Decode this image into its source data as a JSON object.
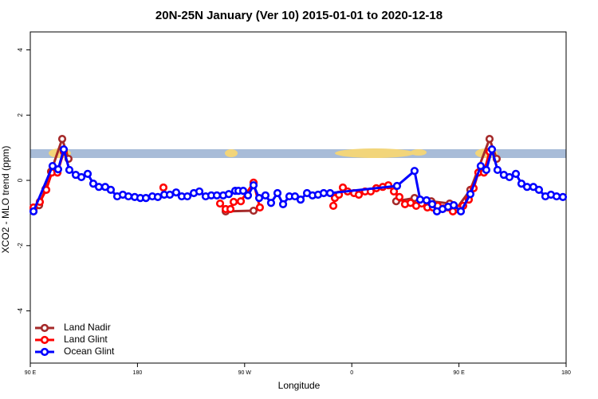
{
  "chart_data": {
    "type": "line",
    "title": "20N-25N January (Ver 10)   2015-01-01 to 2020-12-18",
    "xlabel": "Longitude",
    "ylabel": "XCO2 - MLO trend (ppm)",
    "xlim": [
      90,
      540
    ],
    "ylim": [
      -5.6,
      4.55
    ],
    "xticks": [
      {
        "value": 90,
        "label": "90 E"
      },
      180,
      {
        "value": 270,
        "label": "90 W"
      },
      {
        "value": 360,
        "label": "0"
      },
      {
        "value": 450,
        "label": "90 E"
      },
      {
        "value": 540,
        "label": "180"
      }
    ],
    "yticks": [
      -4,
      -2,
      0,
      2,
      4
    ],
    "legend": "bottom-left",
    "series": [
      {
        "name": "Land Nadir",
        "color": "#a52a2a",
        "x": [
          92.7,
          97.4,
          102.7,
          107.4,
          116.8,
          122.1,
          null,
          254.1,
          277.5,
          null,
          397.3,
          412.7,
          426.8,
          442.2,
          447.6,
          459.6,
          475.7,
          481.7
        ],
        "values": [
          -0.88,
          -0.76,
          -0.27,
          0.27,
          1.27,
          0.66,
          null,
          -0.95,
          -0.93,
          null,
          -0.64,
          -0.54,
          -0.64,
          -0.71,
          -0.88,
          -0.29,
          1.27,
          0.66
        ]
      },
      {
        "name": "Land Glint",
        "color": "#ff0000",
        "x": [
          92.7,
          98.0,
          103.4,
          108.1,
          112.8,
          118.1,
          null,
          201.8,
          null,
          249.4,
          254.1,
          258.1,
          260.8,
          266.8,
          277.5,
          282.8,
          null,
          344.5,
          345.8,
          349.2,
          352.5,
          356.5,
          361.9,
          365.9,
          371.2,
          375.9,
          380.6,
          386.0,
          390.7,
          395.4,
          400.0,
          404.7,
          409.4,
          414.1,
          418.8,
          423.5,
          428.1,
          432.2,
          436.9,
          440.9,
          444.9,
          449.6,
          453.6,
          458.3,
          462.3,
          466.3,
          471.0,
          475.7
        ],
        "values": [
          -0.83,
          -0.66,
          -0.29,
          0.24,
          0.24,
          0.88,
          null,
          -0.22,
          null,
          -0.71,
          -0.88,
          -0.88,
          -0.66,
          -0.64,
          -0.07,
          -0.83,
          null,
          -0.78,
          -0.54,
          -0.44,
          -0.22,
          -0.34,
          -0.39,
          -0.44,
          -0.34,
          -0.34,
          -0.24,
          -0.2,
          -0.15,
          -0.34,
          -0.51,
          -0.73,
          -0.69,
          -0.78,
          -0.71,
          -0.83,
          -0.83,
          -0.78,
          -0.86,
          -0.83,
          -0.95,
          -0.88,
          -0.78,
          -0.59,
          -0.24,
          0.24,
          0.24,
          0.88
        ]
      },
      {
        "name": "Ocean Glint",
        "color": "#0000ff",
        "x": [
          92.7,
          108.7,
          113.4,
          118.1,
          122.8,
          128.2,
          132.9,
          138.2,
          142.9,
          147.6,
          152.9,
          157.6,
          163.0,
          167.7,
          172.4,
          177.7,
          182.4,
          187.1,
          192.5,
          197.1,
          202.5,
          207.2,
          212.5,
          217.2,
          221.9,
          227.3,
          232.0,
          237.3,
          242.0,
          246.7,
          252.0,
          256.7,
          262.1,
          264.8,
          268.8,
          272.8,
          277.5,
          282.2,
          287.5,
          292.2,
          297.6,
          302.3,
          307.6,
          312.3,
          317.0,
          322.4,
          327.0,
          331.7,
          336.4,
          341.8,
          398.0,
          412.7,
          417.4,
          422.8,
          427.5,
          431.5,
          436.2,
          440.9,
          445.6,
          451.6,
          459.6,
          468.3,
          473.0,
          477.7,
          482.4,
          487.7,
          492.4,
          497.8,
          502.5,
          507.2,
          512.5,
          517.2,
          522.6,
          527.3,
          532.0,
          537.3
        ],
        "values": [
          -0.95,
          0.44,
          0.34,
          0.95,
          0.32,
          0.17,
          0.1,
          0.2,
          -0.1,
          -0.2,
          -0.2,
          -0.29,
          -0.49,
          -0.44,
          -0.49,
          -0.51,
          -0.54,
          -0.54,
          -0.49,
          -0.51,
          -0.44,
          -0.44,
          -0.37,
          -0.49,
          -0.49,
          -0.39,
          -0.34,
          -0.49,
          -0.46,
          -0.46,
          -0.46,
          -0.42,
          -0.32,
          -0.32,
          -0.32,
          -0.46,
          -0.15,
          -0.54,
          -0.46,
          -0.69,
          -0.39,
          -0.73,
          -0.49,
          -0.49,
          -0.59,
          -0.39,
          -0.46,
          -0.44,
          -0.39,
          -0.39,
          -0.17,
          0.29,
          -0.59,
          -0.61,
          -0.73,
          -0.95,
          -0.88,
          -0.81,
          -0.76,
          -0.95,
          -0.42,
          0.44,
          0.32,
          0.95,
          0.32,
          0.17,
          0.1,
          0.2,
          -0.1,
          -0.2,
          -0.2,
          -0.29,
          -0.49,
          -0.44,
          -0.49,
          -0.51
        ]
      }
    ]
  }
}
